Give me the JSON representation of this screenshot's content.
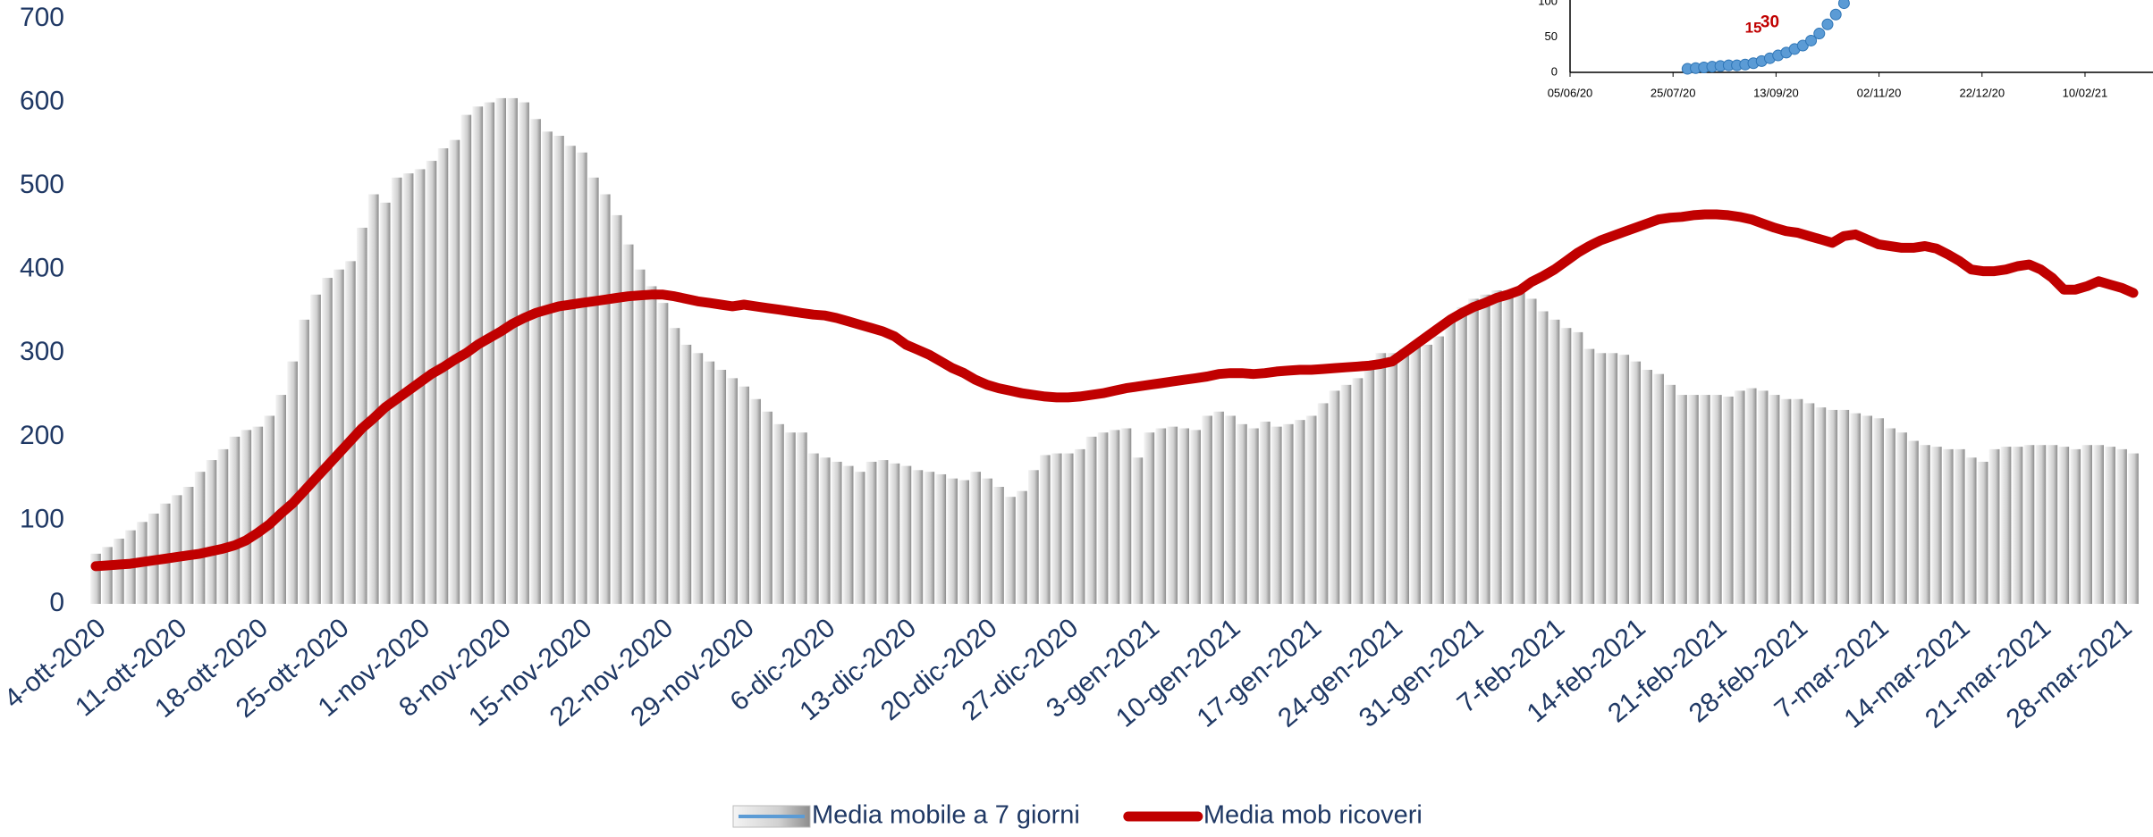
{
  "chart_data": [
    {
      "type": "bar",
      "categories": [
        "4-ott-2020",
        null,
        null,
        null,
        null,
        null,
        null,
        "11-ott-2020",
        null,
        null,
        null,
        null,
        null,
        null,
        "18-ott-2020",
        null,
        null,
        null,
        null,
        null,
        null,
        "25-ott-2020",
        null,
        null,
        null,
        null,
        null,
        null,
        "1-nov-2020",
        null,
        null,
        null,
        null,
        null,
        null,
        "8-nov-2020",
        null,
        null,
        null,
        null,
        null,
        null,
        "15-nov-2020",
        null,
        null,
        null,
        null,
        null,
        null,
        "22-nov-2020",
        null,
        null,
        null,
        null,
        null,
        null,
        "29-nov-2020",
        null,
        null,
        null,
        null,
        null,
        null,
        "6-dic-2020",
        null,
        null,
        null,
        null,
        null,
        null,
        "13-dic-2020",
        null,
        null,
        null,
        null,
        null,
        null,
        "20-dic-2020",
        null,
        null,
        null,
        null,
        null,
        null,
        "27-dic-2020",
        null,
        null,
        null,
        null,
        null,
        null,
        "3-gen-2021",
        null,
        null,
        null,
        null,
        null,
        null,
        "10-gen-2021",
        null,
        null,
        null,
        null,
        null,
        null,
        "17-gen-2021",
        null,
        null,
        null,
        null,
        null,
        null,
        "24-gen-2021",
        null,
        null,
        null,
        null,
        null,
        null,
        "31-gen-2021",
        null,
        null,
        null,
        null,
        null,
        null,
        "7-feb-2021",
        null,
        null,
        null,
        null,
        null,
        null,
        "14-feb-2021",
        null,
        null,
        null,
        null,
        null,
        null,
        "21-feb-2021",
        null,
        null,
        null,
        null,
        null,
        null,
        "28-feb-2021",
        null,
        null,
        null,
        null,
        null,
        null,
        "7-mar-2021",
        null,
        null,
        null,
        null,
        null,
        null,
        "14-mar-2021",
        null,
        null,
        null,
        null,
        null,
        null,
        "21-mar-2021",
        null,
        null,
        null,
        null,
        null,
        null,
        "28-mar-2021",
        null
      ],
      "series": [
        {
          "name": "Media mobile a 7 giorni",
          "type": "bar",
          "color": "#d9d9d9",
          "values": [
            60,
            68,
            78,
            88,
            98,
            108,
            120,
            130,
            140,
            158,
            172,
            185,
            200,
            208,
            212,
            225,
            250,
            290,
            340,
            370,
            390,
            400,
            410,
            450,
            490,
            480,
            510,
            515,
            520,
            530,
            545,
            555,
            585,
            595,
            600,
            605,
            605,
            600,
            580,
            565,
            560,
            548,
            540,
            510,
            490,
            465,
            430,
            400,
            380,
            360,
            330,
            310,
            300,
            290,
            280,
            270,
            260,
            245,
            230,
            215,
            205,
            205,
            180,
            175,
            170,
            165,
            158,
            170,
            172,
            168,
            165,
            160,
            158,
            155,
            150,
            148,
            158,
            150,
            140,
            128,
            135,
            160,
            178,
            180,
            180,
            185,
            200,
            205,
            208,
            210,
            175,
            205,
            210,
            212,
            210,
            208,
            225,
            230,
            225,
            215,
            210,
            218,
            212,
            215,
            220,
            225,
            240,
            255,
            262,
            270,
            290,
            300,
            300,
            305,
            308,
            310,
            320,
            340,
            355,
            365,
            370,
            375,
            375,
            372,
            365,
            350,
            340,
            330,
            325,
            305,
            300,
            300,
            298,
            290,
            280,
            275,
            262,
            250,
            250,
            250,
            250,
            248,
            255,
            258,
            255,
            250,
            245,
            245,
            240,
            235,
            232,
            232,
            228,
            225,
            222,
            210,
            205,
            195,
            190,
            188,
            185,
            185,
            175,
            170,
            185,
            188,
            188,
            190,
            190,
            190,
            188,
            185,
            190,
            190,
            188,
            185,
            180
          ]
        },
        {
          "name": "Media mob ricoveri",
          "type": "line",
          "color": "#c00000",
          "values": [
            45,
            46,
            47,
            48,
            50,
            52,
            54,
            56,
            58,
            60,
            63,
            66,
            70,
            76,
            85,
            95,
            108,
            120,
            135,
            150,
            165,
            180,
            195,
            210,
            222,
            235,
            245,
            255,
            265,
            275,
            283,
            292,
            300,
            310,
            318,
            326,
            335,
            342,
            348,
            352,
            356,
            358,
            360,
            362,
            364,
            366,
            368,
            369,
            370,
            370,
            368,
            365,
            362,
            360,
            358,
            356,
            358,
            356,
            354,
            352,
            350,
            348,
            346,
            345,
            342,
            338,
            334,
            330,
            326,
            320,
            310,
            304,
            298,
            290,
            282,
            276,
            268,
            262,
            258,
            255,
            252,
            250,
            248,
            247,
            247,
            248,
            250,
            252,
            255,
            258,
            260,
            262,
            264,
            266,
            268,
            270,
            272,
            275,
            276,
            276,
            275,
            276,
            278,
            279,
            280,
            280,
            281,
            282,
            283,
            284,
            285,
            287,
            290,
            300,
            310,
            320,
            330,
            340,
            348,
            355,
            360,
            366,
            370,
            375,
            385,
            392,
            400,
            410,
            420,
            428,
            435,
            440,
            445,
            450,
            455,
            460,
            462,
            463,
            465,
            466,
            466,
            465,
            463,
            460,
            455,
            450,
            446,
            444,
            440,
            436,
            432,
            440,
            442,
            436,
            430,
            428,
            426,
            426,
            428,
            425,
            418,
            410,
            400,
            398,
            398,
            400,
            404,
            406,
            400,
            390,
            376,
            376,
            380,
            386,
            382,
            378,
            372
          ]
        }
      ],
      "ylim": [
        0,
        700
      ],
      "yticks": [
        0,
        100,
        200,
        300,
        400,
        500,
        600,
        700
      ]
    },
    {
      "type": "scatter",
      "color": "#5b9bd5",
      "x": [
        "01/08/20",
        "05/08/20",
        "09/08/20",
        "13/08/20",
        "17/08/20",
        "21/08/20",
        "25/08/20",
        "29/08/20",
        "02/09/20",
        "06/09/20",
        "10/09/20",
        "14/09/20",
        "18/09/20",
        "22/09/20",
        "26/09/20",
        "30/09/20",
        "04/10/20",
        "08/10/20",
        "12/10/20",
        "16/10/20"
      ],
      "values": [
        5,
        6,
        7,
        8,
        9,
        10,
        10,
        11,
        13,
        16,
        20,
        24,
        28,
        33,
        38,
        45,
        55,
        68,
        82,
        98
      ],
      "xlim": [
        "05/06/20",
        "15/03/21"
      ],
      "xticks": [
        "05/06/20",
        "25/07/20",
        "13/09/20",
        "02/11/20",
        "22/12/20",
        "10/02/21"
      ],
      "ylim": [
        0,
        100
      ],
      "yticks": [
        0,
        50,
        100
      ],
      "annotations": [
        {
          "text": "15",
          "x": "02/09/20",
          "y": 62
        },
        {
          "text": "30",
          "x": "10/09/20",
          "y": 70
        }
      ]
    }
  ]
}
